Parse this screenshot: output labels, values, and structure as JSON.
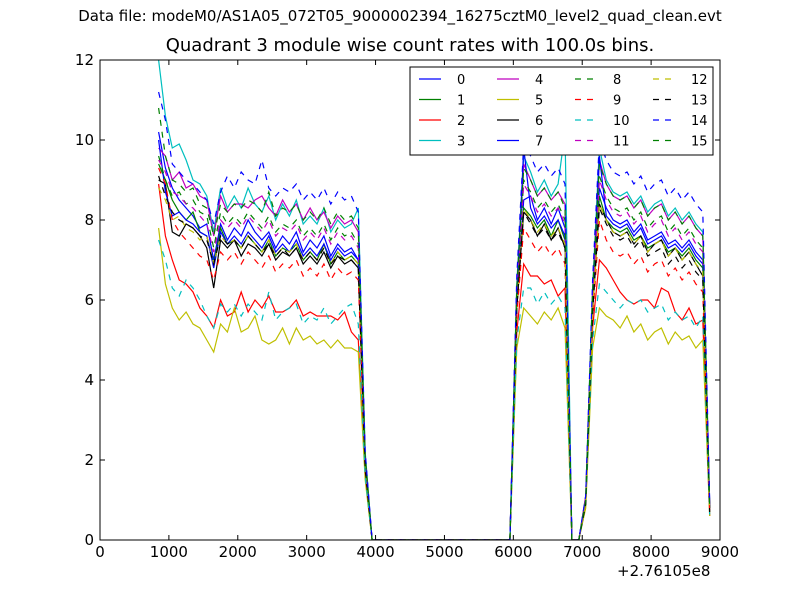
{
  "figure": {
    "suptitle": "Data file: modeM0/AS1A05_072T05_9000002394_16275cztM0_level2_quad_clean.evt",
    "x_offset_label": "+2.76105e8"
  },
  "chart_data": {
    "type": "line",
    "title": "Quadrant 3 module wise count rates with 100.0s bins.",
    "xlabel": "",
    "ylabel": "",
    "xlim": [
      0,
      9000
    ],
    "ylim": [
      0,
      12
    ],
    "xticks": [
      0,
      1000,
      2000,
      3000,
      4000,
      5000,
      6000,
      7000,
      8000,
      9000
    ],
    "yticks": [
      0,
      2,
      4,
      6,
      8,
      10,
      12
    ],
    "grid": false,
    "legend": {
      "location": "upper right",
      "columns": 4
    },
    "x": [
      850,
      950,
      1050,
      1150,
      1250,
      1350,
      1450,
      1550,
      1650,
      1750,
      1850,
      1950,
      2050,
      2150,
      2250,
      2350,
      2450,
      2550,
      2650,
      2750,
      2850,
      2950,
      3050,
      3150,
      3250,
      3350,
      3450,
      3550,
      3650,
      3750,
      3850,
      3950,
      4050,
      5950,
      6050,
      6150,
      6250,
      6350,
      6450,
      6550,
      6650,
      6750,
      6850,
      6950,
      7050,
      7150,
      7250,
      7350,
      7450,
      7550,
      7650,
      7750,
      7850,
      7950,
      8050,
      8150,
      8250,
      8350,
      8450,
      8550,
      8650,
      8750,
      8850
    ],
    "series": [
      {
        "name": "0",
        "color": "#0000ff",
        "style": "solid",
        "values": [
          10.2,
          9.3,
          8.8,
          8.5,
          8.3,
          8.1,
          7.8,
          7.9,
          7.0,
          7.9,
          7.5,
          7.8,
          7.6,
          8.0,
          7.7,
          7.5,
          7.7,
          7.3,
          7.6,
          7.4,
          7.7,
          7.2,
          7.5,
          7.3,
          7.6,
          7.1,
          7.4,
          7.2,
          7.3,
          7.0,
          2.0,
          0,
          0,
          0,
          5.9,
          8.5,
          8.6,
          8.0,
          8.3,
          7.9,
          8.3,
          7.8,
          0,
          0,
          1.0,
          5.9,
          8.8,
          8.3,
          8.0,
          7.9,
          8.0,
          7.7,
          7.9,
          7.5,
          7.6,
          7.7,
          7.4,
          7.5,
          7.3,
          7.5,
          7.2,
          7.0,
          0.8
        ]
      },
      {
        "name": "1",
        "color": "#008000",
        "style": "solid",
        "values": [
          9.4,
          9.0,
          8.5,
          8.2,
          8.0,
          8.2,
          7.7,
          7.6,
          6.9,
          7.8,
          7.4,
          7.5,
          7.3,
          7.6,
          7.4,
          7.2,
          7.5,
          7.1,
          7.3,
          7.2,
          7.4,
          7.0,
          7.2,
          7.0,
          7.4,
          6.9,
          7.2,
          7.0,
          7.1,
          6.9,
          1.9,
          0,
          0,
          0,
          5.8,
          8.3,
          8.1,
          7.8,
          8.0,
          7.6,
          8.0,
          7.5,
          0,
          0,
          1.0,
          5.8,
          8.6,
          8.0,
          7.8,
          7.7,
          7.8,
          7.5,
          7.6,
          7.3,
          7.4,
          7.5,
          7.2,
          7.3,
          7.1,
          7.3,
          7.0,
          6.8,
          0.8
        ]
      },
      {
        "name": "2",
        "color": "#ff0000",
        "style": "solid",
        "values": [
          8.9,
          7.6,
          7.0,
          6.5,
          6.4,
          6.2,
          5.8,
          5.6,
          5.3,
          6.0,
          5.6,
          5.7,
          6.2,
          5.7,
          6.0,
          5.8,
          6.1,
          5.7,
          5.7,
          5.8,
          6.0,
          5.6,
          5.7,
          5.6,
          5.6,
          5.6,
          5.5,
          5.7,
          5.2,
          5.0,
          1.6,
          0,
          0,
          0,
          5.2,
          6.9,
          6.6,
          6.6,
          6.4,
          6.5,
          6.1,
          6.3,
          0,
          0,
          0.9,
          5.3,
          7.0,
          6.8,
          6.5,
          6.2,
          6.0,
          5.9,
          6.0,
          6.0,
          5.8,
          6.3,
          6.2,
          5.7,
          5.5,
          5.8,
          5.4,
          5.5,
          0.6
        ]
      },
      {
        "name": "3",
        "color": "#00bfbf",
        "style": "solid",
        "values": [
          12.0,
          10.6,
          9.8,
          9.9,
          9.5,
          9.0,
          8.9,
          8.6,
          7.7,
          8.8,
          8.3,
          8.6,
          8.3,
          8.8,
          8.4,
          8.2,
          8.6,
          8.0,
          8.4,
          8.1,
          8.5,
          7.9,
          8.1,
          7.9,
          8.3,
          7.7,
          8.0,
          7.8,
          7.9,
          8.3,
          2.2,
          0,
          0,
          0,
          6.4,
          9.6,
          9.2,
          8.7,
          9.0,
          8.6,
          8.9,
          10.2,
          0,
          0,
          1.1,
          6.3,
          9.8,
          9.0,
          8.7,
          8.6,
          8.7,
          8.4,
          8.6,
          8.2,
          8.4,
          8.5,
          8.1,
          8.3,
          8.0,
          8.2,
          7.9,
          7.7,
          0.9
        ]
      },
      {
        "name": "4",
        "color": "#bf00bf",
        "style": "solid",
        "values": [
          9.8,
          9.6,
          9.0,
          9.2,
          8.8,
          8.9,
          8.6,
          8.5,
          7.6,
          8.6,
          8.2,
          8.4,
          8.4,
          8.3,
          8.5,
          8.6,
          8.3,
          8.1,
          8.5,
          8.2,
          8.4,
          8.0,
          8.3,
          8.0,
          8.2,
          7.8,
          8.1,
          7.9,
          8.0,
          7.7,
          2.1,
          0,
          0,
          0,
          6.3,
          9.4,
          9.0,
          8.6,
          8.8,
          8.5,
          8.7,
          8.4,
          0,
          0,
          1.1,
          6.2,
          9.5,
          8.9,
          8.6,
          8.5,
          8.6,
          8.3,
          8.5,
          8.1,
          8.3,
          8.4,
          8.0,
          8.2,
          7.9,
          8.1,
          7.8,
          7.6,
          0.9
        ]
      },
      {
        "name": "5",
        "color": "#bfbf00",
        "style": "solid",
        "values": [
          7.8,
          6.4,
          5.8,
          5.5,
          5.7,
          5.4,
          5.3,
          5.0,
          4.7,
          5.4,
          5.2,
          5.8,
          5.2,
          5.3,
          5.6,
          5.0,
          4.9,
          5.0,
          5.3,
          4.9,
          5.3,
          5.0,
          5.1,
          4.9,
          5.0,
          4.8,
          5.0,
          4.8,
          4.8,
          4.7,
          1.5,
          0,
          0,
          0,
          4.8,
          5.8,
          5.6,
          5.4,
          5.7,
          5.5,
          5.8,
          5.3,
          0,
          0,
          0.8,
          4.8,
          5.8,
          5.6,
          5.5,
          5.3,
          5.6,
          5.2,
          5.4,
          5.0,
          5.2,
          5.3,
          4.9,
          5.2,
          5.0,
          5.1,
          4.8,
          5.0,
          0.6
        ]
      },
      {
        "name": "6",
        "color": "#000000",
        "style": "solid",
        "values": [
          9.0,
          8.9,
          7.7,
          7.6,
          7.9,
          7.8,
          7.6,
          7.3,
          6.3,
          7.5,
          7.3,
          7.5,
          7.1,
          7.4,
          7.3,
          7.1,
          7.4,
          7.0,
          7.2,
          7.1,
          7.3,
          6.9,
          7.1,
          6.9,
          7.2,
          6.8,
          7.1,
          6.9,
          7.0,
          6.8,
          1.8,
          0,
          0,
          0,
          5.8,
          8.2,
          8.0,
          7.6,
          7.9,
          7.5,
          7.8,
          7.3,
          0,
          0,
          0.9,
          5.7,
          8.4,
          8.0,
          7.7,
          7.6,
          7.7,
          7.4,
          7.6,
          7.2,
          7.4,
          7.5,
          7.1,
          7.3,
          7.0,
          7.2,
          6.9,
          6.6,
          0.8
        ]
      },
      {
        "name": "7",
        "color": "#0000ff",
        "style": "solid",
        "values": [
          10.0,
          8.7,
          8.1,
          8.2,
          8.0,
          7.9,
          7.7,
          7.6,
          6.8,
          7.7,
          7.4,
          7.6,
          7.4,
          7.7,
          7.5,
          7.3,
          7.6,
          7.2,
          7.4,
          7.2,
          7.5,
          7.1,
          7.3,
          7.1,
          7.4,
          7.0,
          7.3,
          7.1,
          7.2,
          7.0,
          1.9,
          0,
          0,
          0,
          6.0,
          9.8,
          8.3,
          7.9,
          8.1,
          7.8,
          8.0,
          7.6,
          0,
          0,
          1.0,
          5.9,
          9.6,
          8.1,
          7.9,
          7.8,
          7.9,
          7.6,
          7.8,
          7.4,
          7.5,
          7.6,
          7.3,
          7.4,
          7.2,
          7.4,
          7.1,
          6.9,
          0.8
        ]
      },
      {
        "name": "8",
        "color": "#008000",
        "style": "dashed",
        "values": [
          9.6,
          9.0,
          8.6,
          8.7,
          8.4,
          8.5,
          8.2,
          8.1,
          7.3,
          8.2,
          7.9,
          8.1,
          7.9,
          8.2,
          8.0,
          7.8,
          8.1,
          7.7,
          7.9,
          7.8,
          8.0,
          7.6,
          7.8,
          7.6,
          7.9,
          7.5,
          7.8,
          7.6,
          7.7,
          7.4,
          2.0,
          0,
          0,
          0,
          6.1,
          9.0,
          8.7,
          8.3,
          8.5,
          8.2,
          8.4,
          8.0,
          0,
          0,
          1.0,
          6.0,
          9.1,
          8.6,
          8.3,
          8.2,
          8.3,
          8.0,
          8.2,
          7.8,
          8.0,
          8.1,
          7.7,
          7.9,
          7.6,
          7.8,
          7.5,
          7.3,
          0.8
        ]
      },
      {
        "name": "9",
        "color": "#ff0000",
        "style": "dashed",
        "values": [
          9.3,
          8.9,
          8.0,
          7.7,
          7.5,
          7.3,
          7.1,
          7.0,
          6.5,
          7.2,
          7.0,
          7.2,
          6.9,
          7.2,
          7.0,
          6.8,
          7.1,
          6.7,
          6.9,
          6.8,
          7.0,
          6.6,
          6.8,
          6.6,
          6.9,
          6.5,
          6.8,
          6.6,
          6.7,
          6.5,
          1.7,
          0,
          0,
          0,
          5.6,
          7.8,
          7.5,
          7.2,
          7.4,
          7.1,
          7.3,
          6.9,
          0,
          0,
          0.9,
          5.5,
          8.0,
          7.5,
          7.2,
          7.1,
          7.2,
          6.9,
          7.1,
          6.7,
          6.9,
          7.0,
          6.6,
          6.8,
          6.5,
          6.7,
          6.4,
          6.2,
          0.7
        ]
      },
      {
        "name": "10",
        "color": "#00bfbf",
        "style": "dashed",
        "values": [
          7.5,
          7.0,
          6.3,
          6.1,
          6.5,
          6.3,
          6.0,
          5.6,
          5.3,
          5.9,
          5.7,
          5.9,
          5.6,
          5.9,
          5.7,
          5.5,
          6.2,
          5.5,
          5.7,
          5.8,
          5.9,
          5.4,
          5.6,
          5.5,
          5.8,
          5.4,
          5.6,
          5.8,
          5.9,
          5.4,
          1.6,
          0,
          0,
          0,
          5.0,
          6.3,
          6.3,
          5.9,
          6.2,
          5.9,
          6.1,
          5.8,
          0,
          0,
          0.9,
          5.0,
          6.4,
          6.2,
          6.0,
          5.8,
          6.0,
          5.9,
          6.0,
          5.7,
          5.8,
          5.9,
          5.5,
          5.7,
          5.5,
          5.6,
          5.3,
          5.6,
          0.6
        ]
      },
      {
        "name": "11",
        "color": "#bf00bf",
        "style": "dashed",
        "values": [
          9.5,
          9.2,
          8.7,
          8.6,
          8.4,
          8.3,
          8.1,
          7.9,
          7.2,
          8.0,
          7.8,
          8.0,
          7.8,
          8.1,
          7.9,
          7.7,
          8.0,
          7.6,
          7.8,
          7.7,
          7.9,
          7.5,
          7.7,
          7.5,
          7.8,
          7.4,
          7.7,
          7.5,
          7.6,
          7.3,
          2.0,
          0,
          0,
          0,
          6.1,
          8.9,
          8.6,
          8.2,
          8.4,
          8.1,
          8.3,
          7.9,
          0,
          0,
          1.0,
          6.0,
          9.0,
          8.5,
          8.2,
          8.1,
          8.2,
          7.9,
          8.1,
          7.7,
          7.9,
          8.0,
          7.6,
          7.8,
          7.5,
          7.7,
          7.4,
          7.2,
          0.8
        ]
      },
      {
        "name": "12",
        "color": "#bfbf00",
        "style": "dashed",
        "values": [
          8.8,
          8.5,
          8.0,
          8.1,
          7.8,
          7.7,
          7.5,
          7.6,
          6.9,
          7.6,
          7.4,
          7.5,
          7.3,
          7.6,
          7.4,
          7.2,
          7.5,
          7.1,
          7.3,
          7.2,
          7.4,
          7.0,
          7.2,
          7.0,
          7.3,
          6.9,
          7.2,
          7.0,
          7.1,
          6.9,
          1.9,
          0,
          0,
          0,
          5.8,
          8.3,
          8.0,
          7.7,
          7.9,
          7.6,
          7.8,
          7.4,
          0,
          0,
          0.9,
          5.7,
          8.4,
          8.0,
          7.7,
          7.6,
          7.7,
          7.4,
          7.6,
          7.2,
          7.4,
          7.5,
          7.1,
          7.3,
          7.0,
          7.2,
          6.9,
          6.7,
          0.7
        ]
      },
      {
        "name": "13",
        "color": "#000000",
        "style": "dashed",
        "values": [
          9.1,
          8.6,
          8.2,
          8.0,
          7.9,
          7.8,
          7.6,
          7.5,
          6.9,
          7.6,
          7.4,
          7.5,
          7.3,
          7.6,
          7.4,
          7.2,
          7.4,
          7.1,
          7.3,
          7.1,
          7.3,
          7.0,
          7.2,
          7.0,
          7.3,
          6.9,
          7.1,
          7.0,
          7.0,
          6.8,
          1.8,
          0,
          0,
          0,
          5.8,
          8.2,
          7.9,
          7.6,
          7.8,
          7.5,
          7.7,
          7.3,
          0,
          0,
          0.9,
          5.7,
          8.3,
          7.9,
          7.6,
          7.5,
          7.6,
          7.3,
          7.5,
          7.1,
          7.2,
          7.3,
          6.9,
          7.1,
          6.8,
          7.0,
          6.7,
          6.5,
          0.7
        ]
      },
      {
        "name": "14",
        "color": "#0000ff",
        "style": "dashed",
        "values": [
          11.2,
          10.5,
          9.4,
          9.2,
          9.0,
          8.9,
          8.7,
          8.5,
          7.9,
          8.7,
          9.1,
          8.8,
          9.2,
          9.0,
          8.9,
          9.5,
          8.8,
          8.6,
          8.8,
          8.7,
          8.9,
          8.5,
          8.7,
          8.5,
          8.8,
          8.4,
          8.7,
          8.5,
          8.6,
          8.2,
          2.2,
          0,
          0,
          0,
          6.6,
          9.9,
          9.6,
          9.2,
          9.4,
          9.1,
          9.3,
          8.9,
          0,
          0,
          1.1,
          6.5,
          10.0,
          9.5,
          9.2,
          9.1,
          9.2,
          8.9,
          9.1,
          8.7,
          8.9,
          9.0,
          8.6,
          8.8,
          8.5,
          8.7,
          8.4,
          8.2,
          0.9
        ]
      },
      {
        "name": "15",
        "color": "#008000",
        "style": "dashed",
        "values": [
          10.8,
          9.6,
          9.0,
          8.9,
          8.7,
          8.8,
          8.4,
          8.3,
          7.6,
          8.4,
          8.2,
          8.4,
          8.3,
          8.5,
          8.4,
          8.2,
          8.7,
          8.1,
          8.3,
          8.2,
          8.4,
          8.0,
          8.2,
          8.0,
          8.3,
          7.9,
          8.2,
          8.0,
          8.1,
          7.8,
          2.1,
          0,
          0,
          0,
          6.3,
          9.3,
          9.0,
          8.6,
          8.8,
          8.5,
          8.7,
          8.3,
          0,
          0,
          1.0,
          6.2,
          9.4,
          8.9,
          8.6,
          8.5,
          8.6,
          8.3,
          8.5,
          8.1,
          8.3,
          8.4,
          8.0,
          8.2,
          7.9,
          8.1,
          7.8,
          7.6,
          0.8
        ]
      }
    ]
  }
}
